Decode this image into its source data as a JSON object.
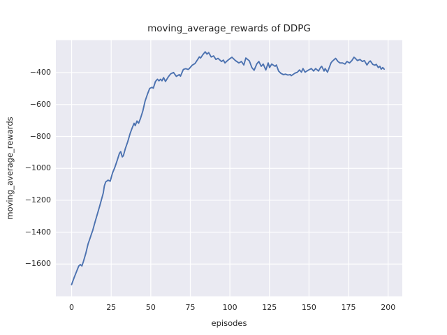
{
  "chart_data": {
    "type": "line",
    "title": "moving_average_rewards of DDPG",
    "xlabel": "episodes",
    "ylabel": "moving_average_rewards",
    "xlim": [
      -9.95,
      208.95
    ],
    "ylim": [
      -1802,
      -196
    ],
    "grid": true,
    "legend": null,
    "x_ticks": {
      "values": [
        0,
        25,
        50,
        75,
        100,
        125,
        150,
        175,
        200
      ],
      "labels": [
        "0",
        "25",
        "50",
        "75",
        "100",
        "125",
        "150",
        "175",
        "200"
      ]
    },
    "y_ticks": {
      "values": [
        -400,
        -600,
        -800,
        -1000,
        -1200,
        -1400,
        -1600
      ],
      "labels": [
        "−400",
        "−600",
        "−800",
        "−1000",
        "−1200",
        "−1400",
        "−1600"
      ]
    },
    "style": {
      "figure_bg": "#ffffff",
      "axes_bg": "#eaeaf2",
      "grid_color": "#ffffff",
      "line_color": "#4c72b0",
      "text_color": "#262626",
      "line_width": 1.9
    },
    "series": [
      {
        "name": "moving_average_rewards",
        "points": [
          [
            0,
            -1729
          ],
          [
            1.5,
            -1688
          ],
          [
            3,
            -1650
          ],
          [
            4.5,
            -1613
          ],
          [
            5.5,
            -1603
          ],
          [
            6.5,
            -1612
          ],
          [
            7.5,
            -1583
          ],
          [
            9,
            -1532
          ],
          [
            10.4,
            -1474
          ],
          [
            11.9,
            -1431
          ],
          [
            12.6,
            -1409
          ],
          [
            13.3,
            -1390
          ],
          [
            14.8,
            -1336
          ],
          [
            16.3,
            -1285
          ],
          [
            17.8,
            -1234
          ],
          [
            19.2,
            -1183
          ],
          [
            20,
            -1154
          ],
          [
            20.7,
            -1110
          ],
          [
            21.5,
            -1085
          ],
          [
            23,
            -1074
          ],
          [
            24.4,
            -1081
          ],
          [
            25.8,
            -1030
          ],
          [
            27.3,
            -994
          ],
          [
            28.8,
            -950
          ],
          [
            30.2,
            -906
          ],
          [
            31,
            -895
          ],
          [
            32,
            -928
          ],
          [
            32.7,
            -921
          ],
          [
            33.9,
            -877
          ],
          [
            35.4,
            -834
          ],
          [
            36.9,
            -783
          ],
          [
            38.3,
            -746
          ],
          [
            39.5,
            -717
          ],
          [
            40.2,
            -732
          ],
          [
            41.3,
            -703
          ],
          [
            42.3,
            -717
          ],
          [
            43.5,
            -688
          ],
          [
            45,
            -640
          ],
          [
            46.4,
            -579
          ],
          [
            47.9,
            -535
          ],
          [
            49.3,
            -499
          ],
          [
            50.8,
            -492
          ],
          [
            51.6,
            -497
          ],
          [
            53,
            -455
          ],
          [
            54.2,
            -441
          ],
          [
            55.2,
            -451
          ],
          [
            56.2,
            -441
          ],
          [
            57.1,
            -451
          ],
          [
            58.1,
            -431
          ],
          [
            59.3,
            -455
          ],
          [
            61.1,
            -426
          ],
          [
            62.6,
            -407
          ],
          [
            64.4,
            -399
          ],
          [
            66.2,
            -423
          ],
          [
            68,
            -412
          ],
          [
            68.8,
            -422
          ],
          [
            70.6,
            -380
          ],
          [
            72.1,
            -375
          ],
          [
            73.6,
            -380
          ],
          [
            74.3,
            -375
          ],
          [
            76.2,
            -353
          ],
          [
            78,
            -342
          ],
          [
            79.3,
            -323
          ],
          [
            80.7,
            -301
          ],
          [
            81.5,
            -308
          ],
          [
            83,
            -286
          ],
          [
            84.4,
            -269
          ],
          [
            85.5,
            -284
          ],
          [
            86.6,
            -274
          ],
          [
            88.2,
            -302
          ],
          [
            89.7,
            -295
          ],
          [
            91.2,
            -317
          ],
          [
            92.5,
            -310
          ],
          [
            94.7,
            -330
          ],
          [
            95.9,
            -321
          ],
          [
            96.9,
            -339
          ],
          [
            98.5,
            -324
          ],
          [
            100.7,
            -307
          ],
          [
            101.3,
            -303
          ],
          [
            103.5,
            -324
          ],
          [
            105.7,
            -339
          ],
          [
            107.3,
            -330
          ],
          [
            108.8,
            -352
          ],
          [
            110.1,
            -308
          ],
          [
            112.3,
            -326
          ],
          [
            113.9,
            -368
          ],
          [
            115.3,
            -385
          ],
          [
            117,
            -345
          ],
          [
            118.3,
            -330
          ],
          [
            119.8,
            -360
          ],
          [
            121.1,
            -346
          ],
          [
            122.7,
            -383
          ],
          [
            124.2,
            -339
          ],
          [
            125.1,
            -368
          ],
          [
            126.4,
            -346
          ],
          [
            128.6,
            -360
          ],
          [
            129.4,
            -352
          ],
          [
            130.8,
            -390
          ],
          [
            132.2,
            -404
          ],
          [
            133.8,
            -412
          ],
          [
            135.2,
            -409
          ],
          [
            136.6,
            -415
          ],
          [
            138.2,
            -412
          ],
          [
            138.8,
            -419
          ],
          [
            141,
            -404
          ],
          [
            142.7,
            -397
          ],
          [
            144,
            -383
          ],
          [
            145.2,
            -397
          ],
          [
            146.2,
            -374
          ],
          [
            147.5,
            -397
          ],
          [
            149.8,
            -383
          ],
          [
            151.5,
            -374
          ],
          [
            152.9,
            -390
          ],
          [
            154.2,
            -374
          ],
          [
            156,
            -390
          ],
          [
            157.3,
            -367
          ],
          [
            158,
            -360
          ],
          [
            159.5,
            -390
          ],
          [
            160.2,
            -374
          ],
          [
            161.7,
            -397
          ],
          [
            163.9,
            -339
          ],
          [
            164.6,
            -330
          ],
          [
            166,
            -317
          ],
          [
            166.8,
            -310
          ],
          [
            168.3,
            -330
          ],
          [
            169.6,
            -339
          ],
          [
            171.2,
            -339
          ],
          [
            172.7,
            -346
          ],
          [
            174,
            -330
          ],
          [
            175.6,
            -339
          ],
          [
            177.1,
            -324
          ],
          [
            178.4,
            -303
          ],
          [
            179.3,
            -310
          ],
          [
            180.6,
            -324
          ],
          [
            182.2,
            -317
          ],
          [
            183.7,
            -330
          ],
          [
            185,
            -324
          ],
          [
            186.6,
            -352
          ],
          [
            188.1,
            -330
          ],
          [
            188.8,
            -327
          ],
          [
            190.3,
            -348
          ],
          [
            191.6,
            -353
          ],
          [
            192.5,
            -348
          ],
          [
            193.8,
            -368
          ],
          [
            194.8,
            -360
          ],
          [
            195.6,
            -378
          ],
          [
            196.6,
            -368
          ],
          [
            197.5,
            -378
          ]
        ]
      }
    ]
  }
}
